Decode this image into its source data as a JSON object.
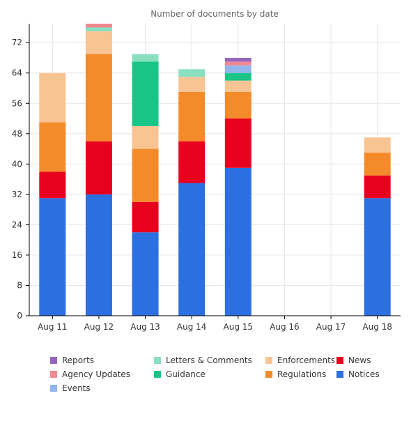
{
  "chart_data": {
    "type": "bar",
    "stacked": true,
    "title": "Number of documents by date",
    "xlabel": "",
    "ylabel": "",
    "ylim": [
      0,
      77
    ],
    "yticks": [
      0,
      8,
      16,
      24,
      32,
      40,
      48,
      56,
      64,
      72
    ],
    "grid": true,
    "legend_position": "bottom",
    "categories": [
      "Aug 11",
      "Aug 12",
      "Aug 13",
      "Aug 14",
      "Aug 15",
      "Aug 16",
      "Aug 17",
      "Aug 18"
    ],
    "series": [
      {
        "name": "Notices",
        "color": "#2c6fe0",
        "values": [
          31,
          32,
          22,
          35,
          39,
          0,
          0,
          31
        ]
      },
      {
        "name": "News",
        "color": "#e8001f",
        "values": [
          7,
          14,
          8,
          11,
          13,
          0,
          0,
          6
        ]
      },
      {
        "name": "Regulations",
        "color": "#f48b2a",
        "values": [
          13,
          23,
          14,
          13,
          7,
          0,
          0,
          6
        ]
      },
      {
        "name": "Enforcements",
        "color": "#f8c493",
        "values": [
          13,
          6,
          6,
          4,
          3,
          0,
          0,
          4
        ]
      },
      {
        "name": "Guidance",
        "color": "#19c586",
        "values": [
          0,
          0,
          17,
          0,
          2,
          0,
          0,
          0
        ]
      },
      {
        "name": "Letters & Comments",
        "color": "#88e0bf",
        "values": [
          0,
          1,
          2,
          2,
          0,
          0,
          0,
          0
        ]
      },
      {
        "name": "Events",
        "color": "#92b5ee",
        "values": [
          0,
          0,
          0,
          0,
          2,
          0,
          0,
          0
        ]
      },
      {
        "name": "Agency Updates",
        "color": "#f08a92",
        "values": [
          0,
          1,
          0,
          0,
          1,
          0,
          0,
          0
        ]
      },
      {
        "name": "Reports",
        "color": "#9467bd",
        "values": [
          0,
          0,
          0,
          0,
          1,
          0,
          0,
          0
        ]
      }
    ],
    "legend_order": [
      "Reports",
      "Letters & Comments",
      "Enforcements",
      "News",
      "Agency Updates",
      "Guidance",
      "Regulations",
      "Notices",
      "Events"
    ]
  }
}
